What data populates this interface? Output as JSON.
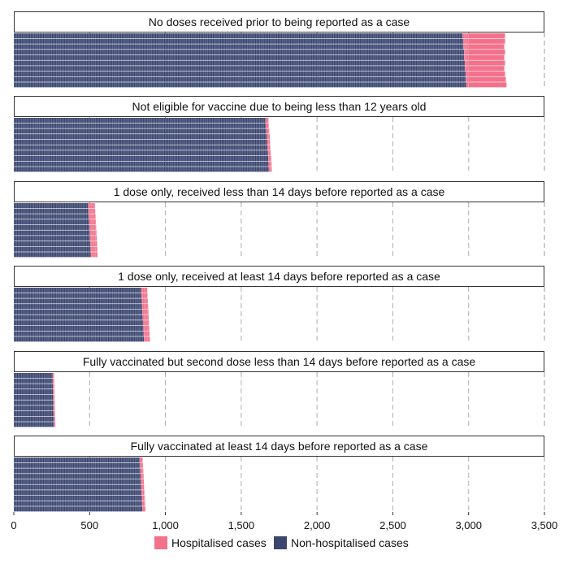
{
  "chart_data": {
    "type": "bar",
    "orientation": "horizontal",
    "stacked": true,
    "xlim": [
      0,
      3500
    ],
    "x_ticks": [
      0,
      500,
      1000,
      1500,
      2000,
      2500,
      3000,
      3500
    ],
    "x_tick_labels": [
      "0",
      "500",
      "1,000",
      "1,500",
      "2,000",
      "2,500",
      "3,000",
      "3,500"
    ],
    "grid": "vertical dashed",
    "legend_position": "bottom",
    "colors": {
      "hospitalised": "#f4718c",
      "non_hospitalised": "#3a4670"
    },
    "legend": [
      {
        "key": "hospitalised",
        "label": "Hospitalised cases"
      },
      {
        "key": "non_hospitalised",
        "label": "Non-hospitalised cases"
      }
    ],
    "panels": [
      {
        "title": "No doses received prior to being reported as a case",
        "rows": [
          {
            "non_hospitalised": 2960,
            "hospitalised": 280
          },
          {
            "non_hospitalised": 2965,
            "hospitalised": 275
          },
          {
            "non_hospitalised": 2965,
            "hospitalised": 270
          },
          {
            "non_hospitalised": 2970,
            "hospitalised": 270
          },
          {
            "non_hospitalised": 2970,
            "hospitalised": 265
          },
          {
            "non_hospitalised": 2975,
            "hospitalised": 265
          },
          {
            "non_hospitalised": 2975,
            "hospitalised": 260
          },
          {
            "non_hospitalised": 2980,
            "hospitalised": 260
          },
          {
            "non_hospitalised": 2980,
            "hospitalised": 265
          },
          {
            "non_hospitalised": 2985,
            "hospitalised": 265
          }
        ]
      },
      {
        "title": "Not eligible for vaccine due to being less than 12 years old",
        "rows": [
          {
            "non_hospitalised": 1660,
            "hospitalised": 20
          },
          {
            "non_hospitalised": 1662,
            "hospitalised": 20
          },
          {
            "non_hospitalised": 1665,
            "hospitalised": 20
          },
          {
            "non_hospitalised": 1668,
            "hospitalised": 20
          },
          {
            "non_hospitalised": 1670,
            "hospitalised": 20
          },
          {
            "non_hospitalised": 1672,
            "hospitalised": 20
          },
          {
            "non_hospitalised": 1675,
            "hospitalised": 20
          },
          {
            "non_hospitalised": 1678,
            "hospitalised": 20
          },
          {
            "non_hospitalised": 1680,
            "hospitalised": 20
          },
          {
            "non_hospitalised": 1682,
            "hospitalised": 20
          }
        ]
      },
      {
        "title": "1 dose only, received less than 14 days before reported as a case",
        "rows": [
          {
            "non_hospitalised": 490,
            "hospitalised": 45
          },
          {
            "non_hospitalised": 492,
            "hospitalised": 45
          },
          {
            "non_hospitalised": 494,
            "hospitalised": 45
          },
          {
            "non_hospitalised": 496,
            "hospitalised": 45
          },
          {
            "non_hospitalised": 498,
            "hospitalised": 45
          },
          {
            "non_hospitalised": 500,
            "hospitalised": 45
          },
          {
            "non_hospitalised": 502,
            "hospitalised": 45
          },
          {
            "non_hospitalised": 504,
            "hospitalised": 45
          },
          {
            "non_hospitalised": 506,
            "hospitalised": 45
          },
          {
            "non_hospitalised": 508,
            "hospitalised": 45
          }
        ]
      },
      {
        "title": "1 dose only, received at least 14 days before reported as a case",
        "rows": [
          {
            "non_hospitalised": 840,
            "hospitalised": 40
          },
          {
            "non_hospitalised": 842,
            "hospitalised": 40
          },
          {
            "non_hospitalised": 844,
            "hospitalised": 40
          },
          {
            "non_hospitalised": 846,
            "hospitalised": 40
          },
          {
            "non_hospitalised": 848,
            "hospitalised": 40
          },
          {
            "non_hospitalised": 850,
            "hospitalised": 40
          },
          {
            "non_hospitalised": 852,
            "hospitalised": 40
          },
          {
            "non_hospitalised": 854,
            "hospitalised": 40
          },
          {
            "non_hospitalised": 856,
            "hospitalised": 40
          },
          {
            "non_hospitalised": 858,
            "hospitalised": 40
          }
        ]
      },
      {
        "title": "Fully vaccinated but second dose less than 14 days before reported as a case",
        "rows": [
          {
            "non_hospitalised": 255,
            "hospitalised": 10
          },
          {
            "non_hospitalised": 256,
            "hospitalised": 10
          },
          {
            "non_hospitalised": 257,
            "hospitalised": 10
          },
          {
            "non_hospitalised": 258,
            "hospitalised": 10
          },
          {
            "non_hospitalised": 259,
            "hospitalised": 10
          },
          {
            "non_hospitalised": 260,
            "hospitalised": 10
          },
          {
            "non_hospitalised": 261,
            "hospitalised": 10
          },
          {
            "non_hospitalised": 262,
            "hospitalised": 10
          },
          {
            "non_hospitalised": 263,
            "hospitalised": 10
          },
          {
            "non_hospitalised": 264,
            "hospitalised": 10
          }
        ]
      },
      {
        "title": "Fully vaccinated at least 14 days before reported as a case",
        "rows": [
          {
            "non_hospitalised": 830,
            "hospitalised": 20
          },
          {
            "non_hospitalised": 832,
            "hospitalised": 20
          },
          {
            "non_hospitalised": 834,
            "hospitalised": 20
          },
          {
            "non_hospitalised": 836,
            "hospitalised": 20
          },
          {
            "non_hospitalised": 838,
            "hospitalised": 20
          },
          {
            "non_hospitalised": 840,
            "hospitalised": 20
          },
          {
            "non_hospitalised": 842,
            "hospitalised": 20
          },
          {
            "non_hospitalised": 844,
            "hospitalised": 20
          },
          {
            "non_hospitalised": 846,
            "hospitalised": 20
          },
          {
            "non_hospitalised": 848,
            "hospitalised": 20
          }
        ]
      }
    ]
  }
}
